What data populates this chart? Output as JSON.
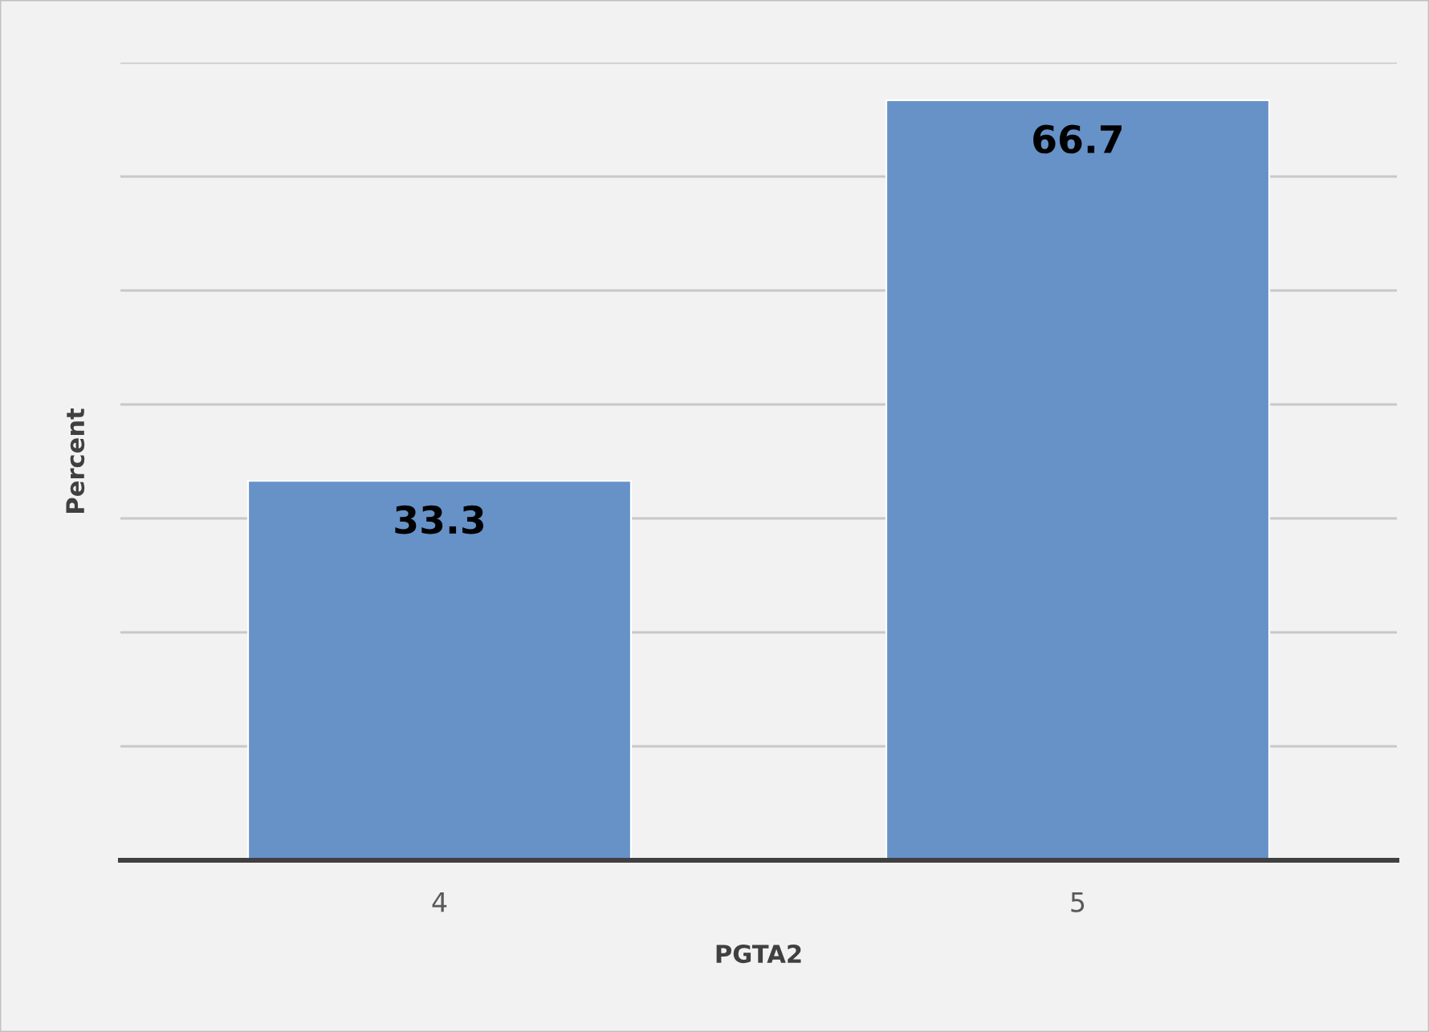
{
  "chart_data": {
    "type": "bar",
    "xlabel": "PGTA2",
    "ylabel": "Percent",
    "categories": [
      "4",
      "5"
    ],
    "values": [
      33.3,
      66.7
    ],
    "color": "#6692c8",
    "ylim": [
      0,
      70
    ],
    "yticks": [
      {
        "value": 0,
        "label": null
      },
      {
        "value": 10,
        "label": null
      },
      {
        "value": 20,
        "label": null
      },
      {
        "value": 30,
        "label": null
      },
      {
        "value": 40,
        "label": null
      },
      {
        "value": 50,
        "label": null
      },
      {
        "value": 60,
        "label": null
      },
      {
        "value": 70,
        "label": null
      }
    ],
    "tick_labels": "x",
    "grid": "y",
    "data_labels": true,
    "legend": false
  }
}
